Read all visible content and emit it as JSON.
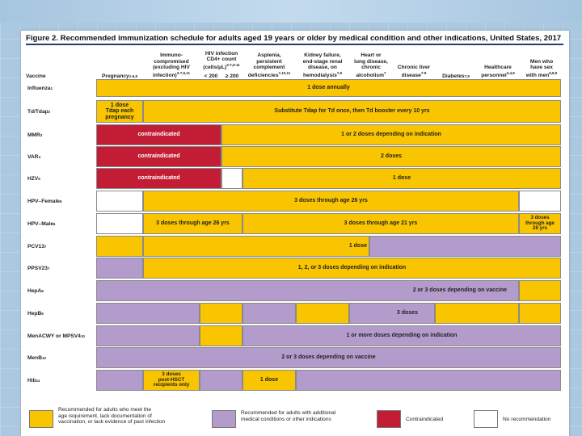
{
  "title": "Figure 2. Recommended immunization schedule for adults aged 19 years or older by medical condition and other indications, United States, 2017",
  "headers": {
    "vaccine": "Vaccine",
    "pregnancy": "Pregnancy",
    "pregnancy_sup": "1-6,9",
    "immuno": "Immuno-\ncompromised\n(excluding HIV\ninfection)",
    "immuno_sup": "3-7,9,11",
    "hiv": "HIV infection\nCD4+ count\n(cells/μL)",
    "hiv_sup": "3-7,9-11",
    "hiv_lt": "< 200",
    "hiv_ge": "≥ 200",
    "asplenia": "Asplenia,\npersistent\ncomplement\ndeficiencies",
    "asplenia_sup": "7,10,11",
    "kidney": "Kidney failure,\nend-stage renal\ndisease, on\nhemodialysis",
    "kidney_sup": "7,9",
    "heart": "Heart or\nlung disease,\nchronic\nalcoholism",
    "heart_sup": "7",
    "liver": "Chronic liver\ndisease",
    "liver_sup": "7-9",
    "diabetes": "Diabetes",
    "diabetes_sup": "7,9",
    "healthcare": "Healthcare\npersonnel",
    "healthcare_sup": "3,4,9",
    "msm": "Men who\nhave sex\nwith men",
    "msm_sup": "6,8,9"
  },
  "rows": [
    {
      "name": "Influenza",
      "sup": "1"
    },
    {
      "name": "Td/Tdap",
      "sup": "2"
    },
    {
      "name": "MMR",
      "sup": "3"
    },
    {
      "name": "VAR",
      "sup": "4"
    },
    {
      "name": "HZV",
      "sup": "5"
    },
    {
      "name": "HPV–Female",
      "sup": "6"
    },
    {
      "name": "HPV–Male",
      "sup": "6"
    },
    {
      "name": "PCV13",
      "sup": "7"
    },
    {
      "name": "PPSV23",
      "sup": "7"
    },
    {
      "name": "HepA",
      "sup": "8"
    },
    {
      "name": "HepB",
      "sup": "9"
    },
    {
      "name": "MenACWY or MPSV4",
      "sup": "10"
    },
    {
      "name": "MenB",
      "sup": "10"
    },
    {
      "name": "Hib",
      "sup": "11"
    }
  ],
  "cells": {
    "influenza": "1 dose annually",
    "td_preg": "1 dose\nTdap each\npregnancy",
    "td_rest": "Substitute Tdap for Td once, then Td booster every 10 yrs",
    "contra": "contraindicated",
    "mmr": "1 or 2 doses depending on indication",
    "var": "2 doses",
    "hzv": "1 dose",
    "hpvf": "3 doses through age 26 yrs",
    "hpvm_a": "3 doses through age 26 yrs",
    "hpvm_b": "3 doses through age 21 yrs",
    "hpvm_c": "3 doses\nthrough age\n26 yrs",
    "pcv13": "1 dose",
    "ppsv23": "1, 2, or 3 doses depending on indication",
    "hepa": "2 or 3 doses depending on vaccine",
    "hepb": "3 doses",
    "menacwy": "1 or more doses depending on indication",
    "menb": "2 or 3 doses depending on vaccine",
    "hib_a": "3 doses\npost-HSCT\nrecipients only",
    "hib_b": "1 dose"
  },
  "legend": {
    "yellow": "Recommended for adults who meet the\nage requirement, lack documentation of\nvaccination, or lack evidence of past infection",
    "purple": "Recommended for adults with additional\nmedical conditions or other indications",
    "red": "Contraindicated",
    "white": "No recommendation"
  },
  "colors": {
    "recommended": "#f9c400",
    "additional": "#b39ccc",
    "contraindicated": "#c21d34",
    "none": "#ffffff",
    "title_rule": "#1f3d7a"
  }
}
